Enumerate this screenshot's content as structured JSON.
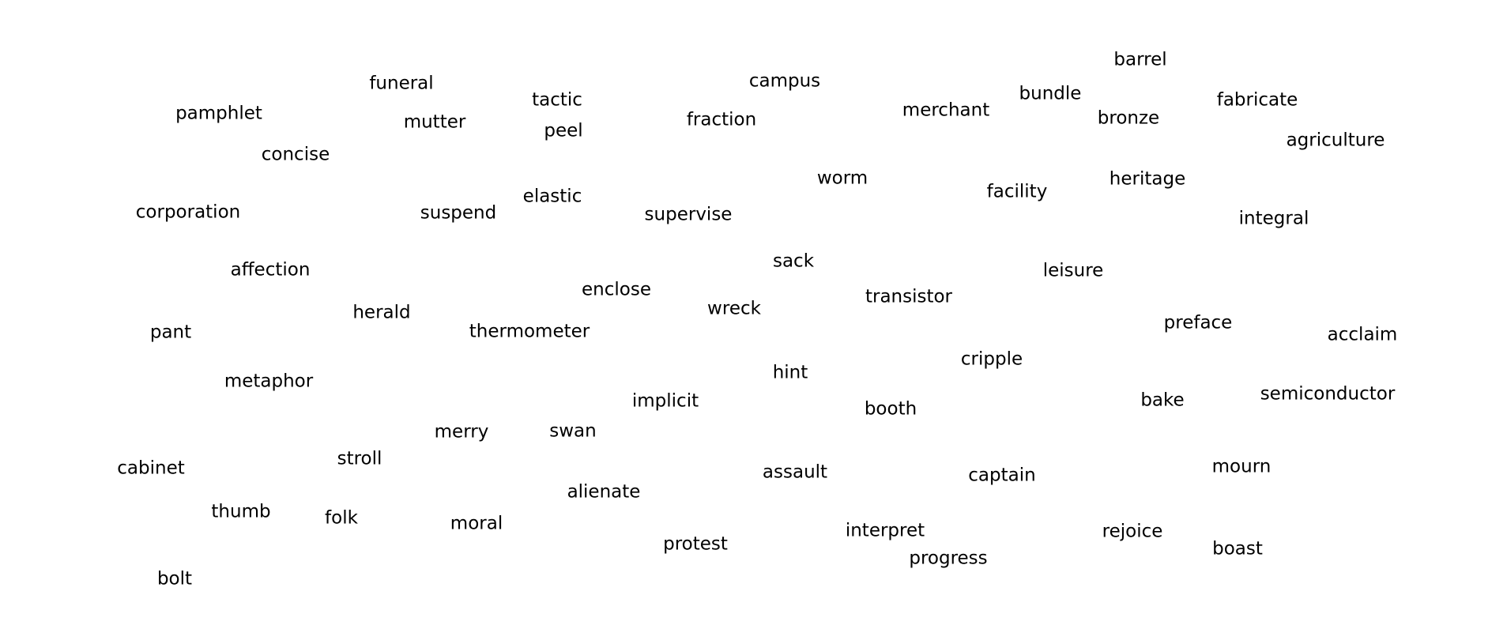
{
  "words": [
    "barrel",
    "funeral",
    "campus",
    "tactic",
    "bundle",
    "fabricate",
    "pamphlet",
    "mutter",
    "merchant",
    "fraction",
    "bronze",
    "peel",
    "agriculture",
    "concise",
    "worm",
    "heritage",
    "facility",
    "elastic",
    "corporation",
    "suspend",
    "supervise",
    "integral",
    "sack",
    "affection",
    "leisure",
    "enclose",
    "transistor",
    "wreck",
    "herald",
    "preface",
    "pant",
    "thermometer",
    "acclaim",
    "cripple",
    "hint",
    "metaphor",
    "semiconductor",
    "implicit",
    "bake",
    "booth",
    "merry",
    "swan",
    "stroll",
    "mourn",
    "cabinet",
    "assault",
    "captain",
    "alienate",
    "thumb",
    "folk",
    "moral",
    "rejoice",
    "interpret",
    "protest",
    "boast",
    "progress",
    "bolt"
  ],
  "style": {
    "background": "#ffffff",
    "text_color": "#000000"
  }
}
